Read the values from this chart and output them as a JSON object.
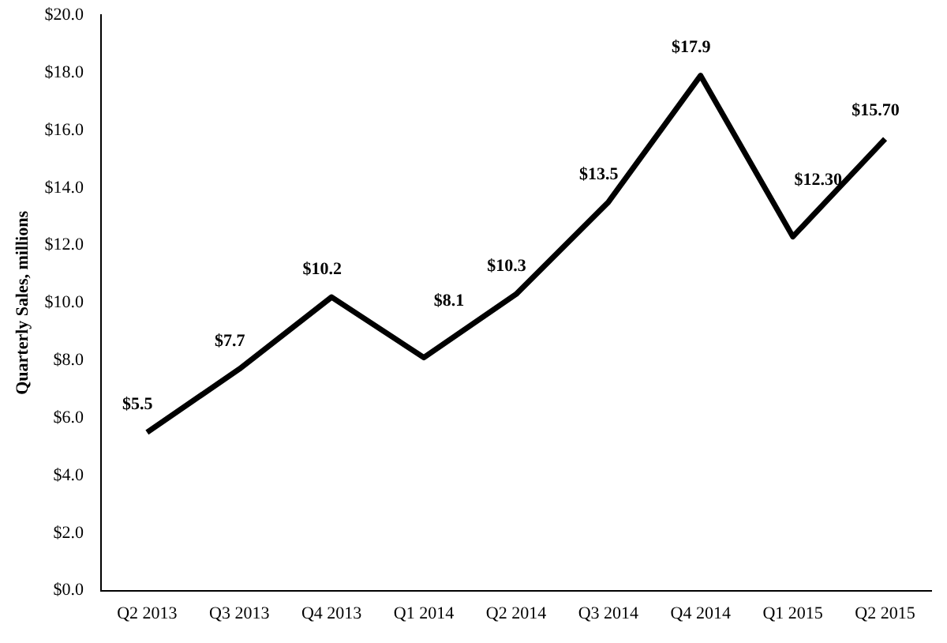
{
  "chart_data": {
    "type": "line",
    "ylabel": "Quarterly Sales, millions",
    "categories": [
      "Q2 2013",
      "Q3 2013",
      "Q4 2013",
      "Q1 2014",
      "Q2 2014",
      "Q3 2014",
      "Q4 2014",
      "Q1 2015",
      "Q2 2015"
    ],
    "series": [
      {
        "color": "#000000",
        "values": [
          5.5,
          7.7,
          10.2,
          8.1,
          10.3,
          13.5,
          17.9,
          12.3,
          15.7
        ],
        "value_labels": [
          "$5.5",
          "$7.7",
          "$10.2",
          "$8.1",
          "$10.3",
          "$13.5",
          "$17.9",
          "$12.30",
          "$15.70"
        ]
      }
    ],
    "ylim": [
      0,
      20
    ],
    "yticks": [
      {
        "value": 0,
        "label": "$0.0"
      },
      {
        "value": 2,
        "label": "$2.0"
      },
      {
        "value": 4,
        "label": "$4.0"
      },
      {
        "value": 6,
        "label": "$6.0"
      },
      {
        "value": 8,
        "label": "$8.0"
      },
      {
        "value": 10,
        "label": "$10.0"
      },
      {
        "value": 12,
        "label": "$12.0"
      },
      {
        "value": 14,
        "label": "$14.0"
      },
      {
        "value": 16,
        "label": "$16.0"
      },
      {
        "value": 18,
        "label": "$18.0"
      },
      {
        "value": 20,
        "label": "$20.0"
      }
    ],
    "grid": false,
    "legend": false,
    "marker": "none",
    "line_style": "solid"
  }
}
